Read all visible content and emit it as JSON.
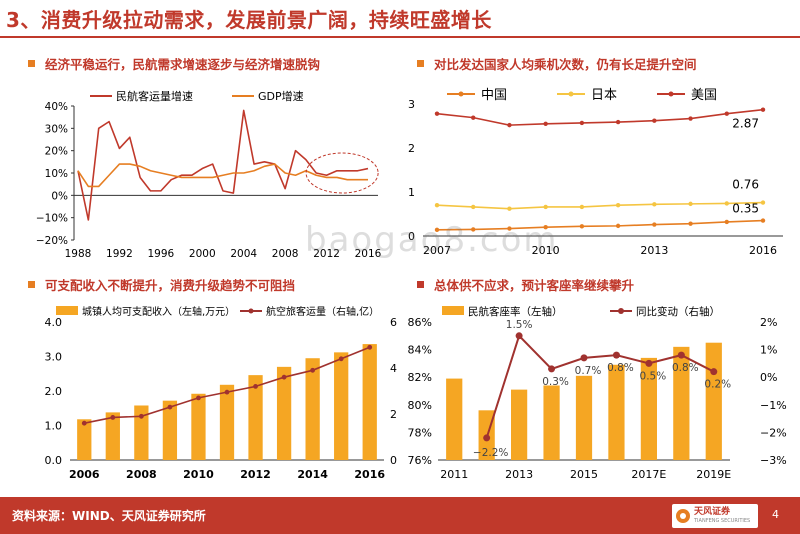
{
  "page": {
    "title": "3、消费升级拉动需求，发展前景广阔，持续旺盛增长",
    "watermark": "baogao8.com",
    "source": "资料来源：WIND、天风证券研究所",
    "logo_name": "天风证券",
    "logo_sub": "TIANFENG SECURITIES",
    "page_number": "4"
  },
  "sections": [
    {
      "label": "经济平稳运行，民航需求增速逐步与经济增速脱钩",
      "color": "#e67e22"
    },
    {
      "label": "对比发达国家人均乘机次数，仍有长足提升空间",
      "color": "#e67e22"
    },
    {
      "label": "可支配收入不断提升，消费升级趋势不可阻挡",
      "color": "#e67e22"
    },
    {
      "label": "总体供不应求，预计客座率继续攀升",
      "color": "#c0392b"
    }
  ],
  "colors": {
    "accent": "#c0392b",
    "orange": "#e67e22",
    "bar": "#f5a623",
    "yellow": "#f5c542",
    "darkred": "#a0322f",
    "axis": "#333333"
  },
  "chart_data": [
    {
      "type": "line",
      "legend": [
        "民航客运量增速",
        "GDP增速"
      ],
      "x": [
        1988,
        1989,
        1990,
        1991,
        1992,
        1993,
        1994,
        1995,
        1996,
        1997,
        1998,
        1999,
        2000,
        2001,
        2002,
        2003,
        2004,
        2005,
        2006,
        2007,
        2008,
        2009,
        2010,
        2011,
        2012,
        2013,
        2014,
        2015,
        2016
      ],
      "xticks": [
        "1988",
        "1992",
        "1996",
        "2000",
        "2004",
        "2008",
        "2012",
        "2016"
      ],
      "ylim": [
        -20,
        40
      ],
      "yticks": [
        "40%",
        "30%",
        "20%",
        "10%",
        "0%",
        "−10%",
        "−20%"
      ],
      "series": [
        {
          "name": "民航客运量增速",
          "values": [
            11,
            -11,
            30,
            33,
            21,
            26,
            8,
            2,
            2,
            7,
            9,
            9,
            12,
            14,
            2,
            1,
            38,
            14,
            15,
            14,
            3,
            20,
            16,
            10,
            9,
            11,
            11,
            11,
            12
          ]
        },
        {
          "name": "GDP增速",
          "values": [
            11,
            4,
            4,
            9,
            14,
            14,
            13,
            11,
            10,
            9,
            8,
            8,
            8,
            8,
            9,
            10,
            10,
            11,
            13,
            14,
            10,
            9,
            11,
            9,
            8,
            8,
            7,
            7,
            7
          ]
        }
      ]
    },
    {
      "type": "line",
      "legend": [
        "中国",
        "日本",
        "美国"
      ],
      "x": [
        2007,
        2008,
        2009,
        2010,
        2011,
        2012,
        2013,
        2014,
        2015,
        2016
      ],
      "xticks": [
        "2007",
        "2010",
        "2013",
        "2016"
      ],
      "ylim": [
        0,
        3
      ],
      "yticks": [
        "3",
        "2",
        "1",
        "0"
      ],
      "series": [
        {
          "name": "中国",
          "values": [
            0.14,
            0.15,
            0.17,
            0.2,
            0.22,
            0.23,
            0.26,
            0.28,
            0.32,
            0.35
          ]
        },
        {
          "name": "日本",
          "values": [
            0.7,
            0.66,
            0.62,
            0.66,
            0.66,
            0.7,
            0.72,
            0.73,
            0.74,
            0.76
          ]
        },
        {
          "name": "美国",
          "values": [
            2.78,
            2.69,
            2.52,
            2.55,
            2.57,
            2.59,
            2.62,
            2.67,
            2.78,
            2.87
          ]
        }
      ],
      "labels": {
        "us": "2.87",
        "jp": "0.76",
        "cn": "0.35"
      }
    },
    {
      "type": "bar+line",
      "legend": [
        "城镇人均可支配收入（左轴,万元）",
        "航空旅客运量（右轴,亿）"
      ],
      "x": [
        2006,
        2007,
        2008,
        2009,
        2010,
        2011,
        2012,
        2013,
        2014,
        2015,
        2016
      ],
      "xticks": [
        "2006",
        "2008",
        "2010",
        "2012",
        "2014",
        "2016"
      ],
      "ylim_left": [
        0,
        4
      ],
      "ylim_right": [
        0,
        6
      ],
      "yticks_left": [
        "4.0",
        "3.0",
        "2.0",
        "1.0",
        "0.0"
      ],
      "yticks_right": [
        "6",
        "4",
        "2",
        "0"
      ],
      "bars": [
        1.18,
        1.38,
        1.58,
        1.72,
        1.92,
        2.18,
        2.46,
        2.7,
        2.95,
        3.12,
        3.36
      ],
      "line": [
        1.6,
        1.85,
        1.9,
        2.3,
        2.7,
        2.95,
        3.2,
        3.6,
        3.9,
        4.4,
        4.9
      ]
    },
    {
      "type": "bar+line",
      "legend": [
        "民航客座率（左轴）",
        "同比变动（右轴）"
      ],
      "x": [
        "2011",
        "2012",
        "2013",
        "2014",
        "2015",
        "2016",
        "2017E",
        "2018E",
        "2019E"
      ],
      "xticks": [
        "2011",
        "2013",
        "2015",
        "2017E",
        "2019E"
      ],
      "ylim_left": [
        76,
        86
      ],
      "ylim_right": [
        -3,
        2
      ],
      "yticks_left": [
        "86%",
        "84%",
        "82%",
        "80%",
        "78%",
        "76%"
      ],
      "yticks_right": [
        "2%",
        "1%",
        "0%",
        "−1%",
        "−2%",
        "−3%"
      ],
      "bars": [
        81.9,
        79.6,
        81.1,
        81.4,
        82.1,
        82.9,
        83.4,
        84.2,
        84.5
      ],
      "line": [
        null,
        -2.2,
        1.5,
        0.3,
        0.7,
        0.8,
        0.5,
        0.8,
        0.2
      ],
      "point_labels": [
        "",
        "−2.2%",
        "1.5%",
        "0.3%",
        "0.7%",
        "0.8%",
        "0.5%",
        "0.8%",
        "0.2%"
      ]
    }
  ]
}
